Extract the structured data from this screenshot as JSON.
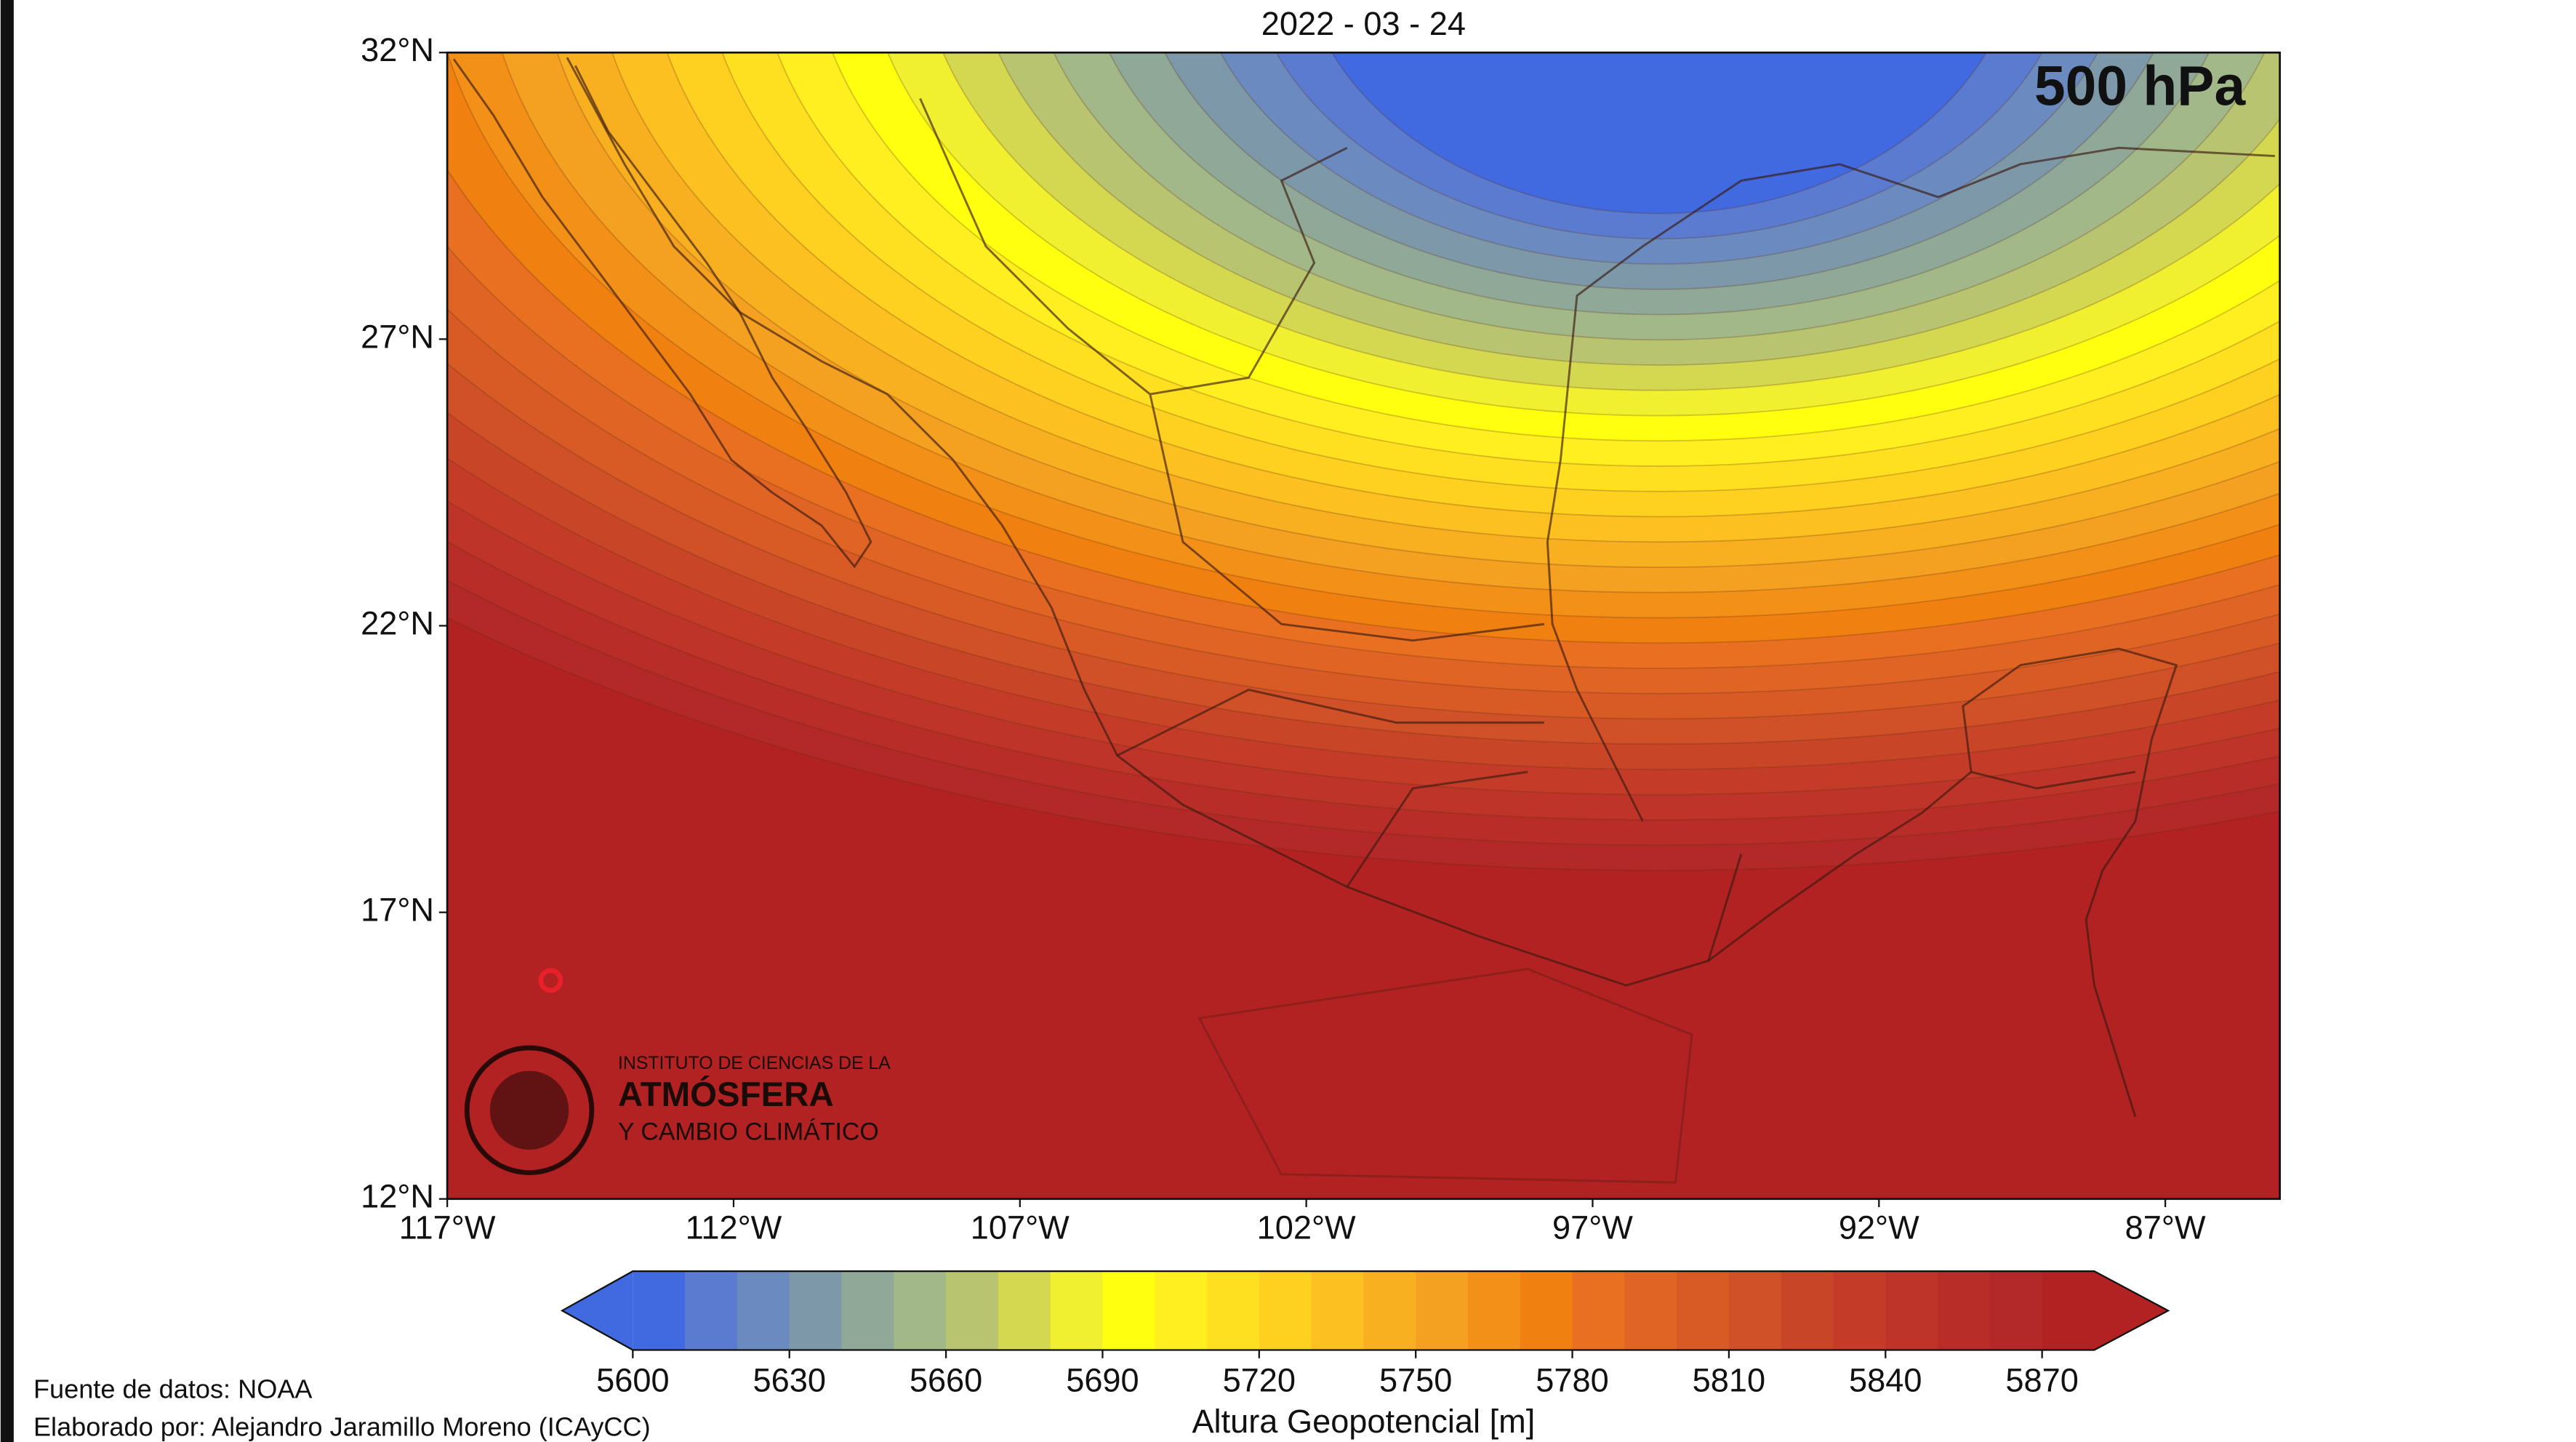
{
  "title": "2022 - 03 - 24",
  "level": "500 hPa",
  "map": {
    "xlim": [
      -117,
      -85
    ],
    "ylim": [
      12,
      32
    ],
    "xticks": [
      {
        "value": -117,
        "label": "117°W"
      },
      {
        "value": -112,
        "label": "112°W"
      },
      {
        "value": -107,
        "label": "107°W"
      },
      {
        "value": -102,
        "label": "102°W"
      },
      {
        "value": -97,
        "label": "97°W"
      },
      {
        "value": -92,
        "label": "92°W"
      },
      {
        "value": -87,
        "label": "87°W"
      }
    ],
    "yticks": [
      {
        "value": 12,
        "label": "12°N"
      },
      {
        "value": 17,
        "label": "17°N"
      },
      {
        "value": 22,
        "label": "22°N"
      },
      {
        "value": 27,
        "label": "27°N"
      },
      {
        "value": 32,
        "label": "32°N"
      }
    ]
  },
  "colorbar": {
    "label": "Altura Geopotencial [m]",
    "lim": [
      5600,
      5880
    ],
    "ticks": [
      5600,
      5630,
      5660,
      5690,
      5720,
      5750,
      5780,
      5810,
      5840,
      5870
    ],
    "colors": [
      "#4169e0",
      "#5a7bd0",
      "#6b8bc0",
      "#7d98a8",
      "#8fa898",
      "#a3b888",
      "#b8c470",
      "#d4d850",
      "#f0f030",
      "#ffff10",
      "#ffef20",
      "#ffe020",
      "#fed020",
      "#fcc020",
      "#f8b020",
      "#f4a020",
      "#f29018",
      "#f08010",
      "#e97020",
      "#e06525",
      "#d85a25",
      "#d05028",
      "#c94528",
      "#c43c28",
      "#be3428",
      "#b82d28",
      "#b32828",
      "#b22222"
    ]
  },
  "logo": {
    "line1": "INSTITUTO DE CIENCIAS DE LA",
    "line2": "ATMÓSFERA",
    "line3": "Y CAMBIO CLIMÁTICO"
  },
  "footer": {
    "source": "Fuente de datos: NOAA",
    "author": "Elaborado por: Alejandro Jaramillo Moreno (ICAyCC)"
  }
}
